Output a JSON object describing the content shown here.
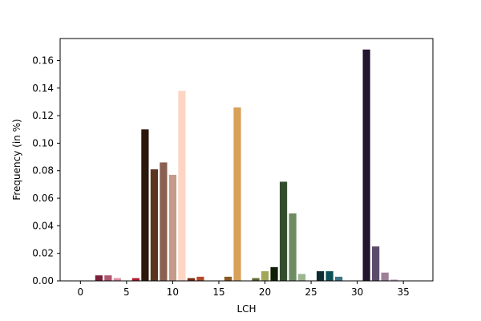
{
  "chart_data": {
    "type": "bar",
    "xlabel": "LCH",
    "ylabel": "Frequency (in %)",
    "xlim": [
      -2.2,
      38.2
    ],
    "ylim": [
      0,
      0.176
    ],
    "xticks": [
      0,
      5,
      10,
      15,
      20,
      25,
      30,
      35
    ],
    "yticks": [
      0.0,
      0.02,
      0.04,
      0.06,
      0.08,
      0.1,
      0.12,
      0.14,
      0.16
    ],
    "ytick_labels": [
      "0.00",
      "0.02",
      "0.04",
      "0.06",
      "0.08",
      "0.10",
      "0.12",
      "0.14",
      "0.16"
    ],
    "grid": false,
    "bars": [
      {
        "x": 2,
        "value": 0.004,
        "color": "#7a1f3a"
      },
      {
        "x": 3,
        "value": 0.004,
        "color": "#b0566e"
      },
      {
        "x": 4,
        "value": 0.002,
        "color": "#dd8fa2"
      },
      {
        "x": 6,
        "value": 0.002,
        "color": "#b01a30"
      },
      {
        "x": 7,
        "value": 0.11,
        "color": "#2b170b"
      },
      {
        "x": 8,
        "value": 0.081,
        "color": "#5b3420"
      },
      {
        "x": 9,
        "value": 0.086,
        "color": "#8a6050"
      },
      {
        "x": 10,
        "value": 0.077,
        "color": "#c59a88"
      },
      {
        "x": 11,
        "value": 0.138,
        "color": "#fdd5c2"
      },
      {
        "x": 12,
        "value": 0.002,
        "color": "#7a2a10"
      },
      {
        "x": 13,
        "value": 0.003,
        "color": "#b24a2a"
      },
      {
        "x": 16,
        "value": 0.003,
        "color": "#8a5a20"
      },
      {
        "x": 17,
        "value": 0.126,
        "color": "#d9a05a"
      },
      {
        "x": 19,
        "value": 0.002,
        "color": "#5a6a30"
      },
      {
        "x": 20,
        "value": 0.007,
        "color": "#a0a858"
      },
      {
        "x": 21,
        "value": 0.01,
        "color": "#0f2008"
      },
      {
        "x": 22,
        "value": 0.072,
        "color": "#344d2e"
      },
      {
        "x": 23,
        "value": 0.049,
        "color": "#6e8c62"
      },
      {
        "x": 24,
        "value": 0.005,
        "color": "#9db690"
      },
      {
        "x": 26,
        "value": 0.007,
        "color": "#0c2a30"
      },
      {
        "x": 27,
        "value": 0.007,
        "color": "#0b4f58"
      },
      {
        "x": 28,
        "value": 0.003,
        "color": "#3d7485"
      },
      {
        "x": 31,
        "value": 0.168,
        "color": "#231530"
      },
      {
        "x": 32,
        "value": 0.025,
        "color": "#5b4b6b"
      },
      {
        "x": 33,
        "value": 0.006,
        "color": "#9e7f96"
      },
      {
        "x": 34,
        "value": 0.001,
        "color": "#c4a8c8"
      }
    ]
  }
}
